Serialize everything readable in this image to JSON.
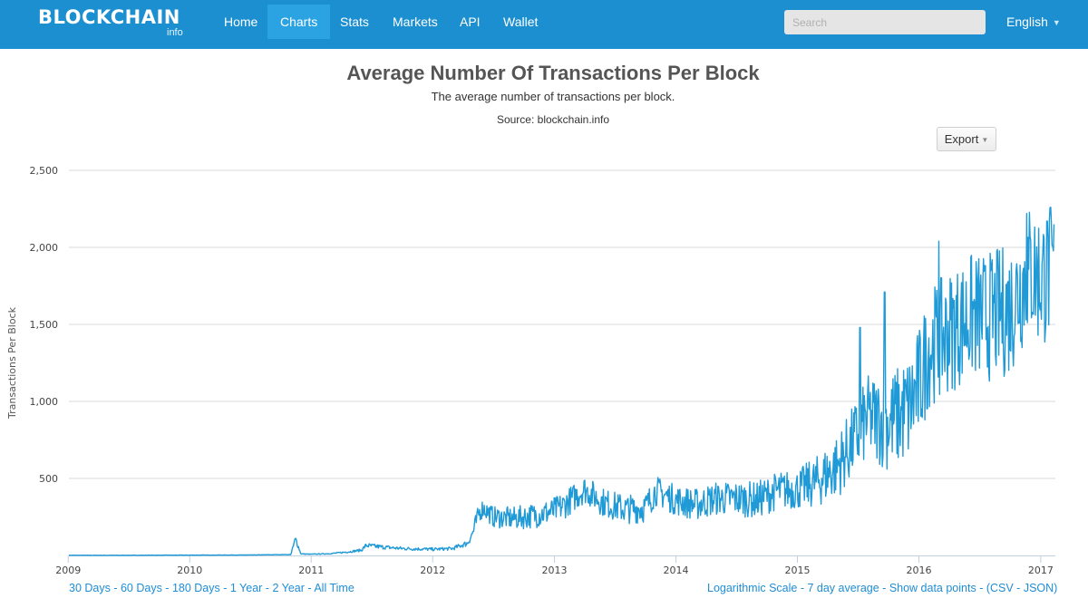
{
  "nav": {
    "brand": "BLOCKCHAIN",
    "brand_sub": "info",
    "items": [
      {
        "label": "Home",
        "active": false
      },
      {
        "label": "Charts",
        "active": true
      },
      {
        "label": "Stats",
        "active": false
      },
      {
        "label": "Markets",
        "active": false
      },
      {
        "label": "API",
        "active": false
      },
      {
        "label": "Wallet",
        "active": false
      }
    ],
    "search_placeholder": "Search",
    "language": "English"
  },
  "header": {
    "title": "Average Number Of Transactions Per Block",
    "subtitle": "The average number of transactions per block.",
    "source": "Source: blockchain.info"
  },
  "export_label": "Export",
  "footer": {
    "ranges": [
      "30 Days",
      "60 Days",
      "180 Days",
      "1 Year",
      "2 Year",
      "All Time"
    ],
    "options": [
      "Logarithmic Scale",
      "7 day average",
      "Show data points"
    ],
    "formats_open": "(",
    "formats": [
      "CSV",
      "JSON"
    ],
    "formats_close": ")"
  },
  "colors": {
    "navbar": "#1c8fd0",
    "nav_active": "#2ba3e3",
    "series": "#1f9ad6",
    "link": "#1f8dd6"
  },
  "chart_data": {
    "type": "line",
    "title": "Average Number Of Transactions Per Block",
    "subtitle": "The average number of transactions per block.",
    "ylabel": "Transactions Per Block",
    "xlabel": "",
    "ylim": [
      0,
      2500
    ],
    "xlim": [
      "2009-01-03",
      "2017-02-10"
    ],
    "yticks": [
      500,
      1000,
      1500,
      2000,
      2500
    ],
    "ytick_labels": [
      "500",
      "1,000",
      "1,500",
      "2,000",
      "2,500"
    ],
    "xticks": [
      "2009",
      "2010",
      "2011",
      "2012",
      "2013",
      "2014",
      "2015",
      "2016",
      "2017"
    ],
    "grid": true,
    "legend": "none",
    "series": [
      {
        "color": "#1f9ad6",
        "points": [
          [
            "2009-01-03",
            1
          ],
          [
            "2009-07-01",
            1
          ],
          [
            "2010-01-01",
            2
          ],
          [
            "2010-07-01",
            3
          ],
          [
            "2010-11-01",
            6
          ],
          [
            "2010-11-15",
            110
          ],
          [
            "2010-12-01",
            10
          ],
          [
            "2011-01-01",
            8
          ],
          [
            "2011-03-01",
            12
          ],
          [
            "2011-05-01",
            25
          ],
          [
            "2011-06-01",
            35
          ],
          [
            "2011-06-15",
            65
          ],
          [
            "2011-08-01",
            55
          ],
          [
            "2011-10-01",
            45
          ],
          [
            "2012-01-01",
            40
          ],
          [
            "2012-03-01",
            45
          ],
          [
            "2012-04-15",
            80
          ],
          [
            "2012-05-01",
            150
          ],
          [
            "2012-05-20",
            280
          ],
          [
            "2012-06-01",
            310
          ],
          [
            "2012-07-01",
            250
          ],
          [
            "2012-09-01",
            240
          ],
          [
            "2012-11-01",
            260
          ],
          [
            "2013-01-01",
            290
          ],
          [
            "2013-02-01",
            330
          ],
          [
            "2013-04-01",
            430
          ],
          [
            "2013-06-01",
            340
          ],
          [
            "2013-08-01",
            300
          ],
          [
            "2013-10-01",
            310
          ],
          [
            "2013-11-01",
            420
          ],
          [
            "2013-12-01",
            390
          ],
          [
            "2014-01-01",
            360
          ],
          [
            "2014-03-01",
            330
          ],
          [
            "2014-05-01",
            370
          ],
          [
            "2014-07-01",
            370
          ],
          [
            "2014-09-01",
            360
          ],
          [
            "2014-11-01",
            420
          ],
          [
            "2015-01-01",
            430
          ],
          [
            "2015-03-01",
            480
          ],
          [
            "2015-05-01",
            580
          ],
          [
            "2015-07-01",
            780
          ],
          [
            "2015-08-01",
            900
          ],
          [
            "2015-10-01",
            860
          ],
          [
            "2015-12-01",
            950
          ],
          [
            "2016-01-01",
            1100
          ],
          [
            "2016-02-01",
            1350
          ],
          [
            "2016-04-01",
            1450
          ],
          [
            "2016-06-01",
            1550
          ],
          [
            "2016-08-01",
            1550
          ],
          [
            "2016-10-01",
            1600
          ],
          [
            "2016-11-01",
            1750
          ],
          [
            "2016-12-01",
            1850
          ],
          [
            "2017-01-01",
            1800
          ],
          [
            "2017-02-10",
            1850
          ]
        ],
        "spread": [
          [
            "2012-05-01",
            60
          ],
          [
            "2013-01-01",
            90
          ],
          [
            "2014-01-01",
            100
          ],
          [
            "2015-01-01",
            130
          ],
          [
            "2015-07-01",
            250
          ],
          [
            "2016-01-01",
            380
          ],
          [
            "2016-07-01",
            420
          ],
          [
            "2017-01-01",
            460
          ]
        ],
        "spikes": [
          [
            "2010-11-15",
            110
          ],
          [
            "2015-07-08",
            1480
          ],
          [
            "2015-09-20",
            1710
          ],
          [
            "2016-03-01",
            2040
          ],
          [
            "2016-11-20",
            2220
          ],
          [
            "2017-01-20",
            2170
          ]
        ]
      }
    ]
  }
}
